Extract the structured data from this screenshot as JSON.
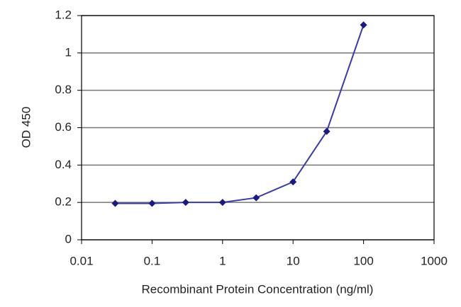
{
  "chart_data": {
    "type": "line",
    "x_label": "Recombinant Protein Concentration (ng/ml)",
    "y_label": "OD 450",
    "x": [
      0.03,
      0.1,
      0.3,
      1,
      3,
      10,
      30,
      100
    ],
    "values": [
      0.195,
      0.195,
      0.2,
      0.2,
      0.225,
      0.31,
      0.58,
      1.15
    ],
    "color": "#3a3aa8",
    "marker_color": "#1a1a80",
    "xscale": "log",
    "xlim": [
      0.01,
      1000
    ],
    "xticks": [
      0.01,
      0.1,
      1,
      10,
      100,
      1000
    ],
    "ylim": [
      0,
      1.2
    ],
    "yticks": [
      0,
      0.2,
      0.4,
      0.6,
      0.8,
      1,
      1.2
    ],
    "grid": true
  }
}
